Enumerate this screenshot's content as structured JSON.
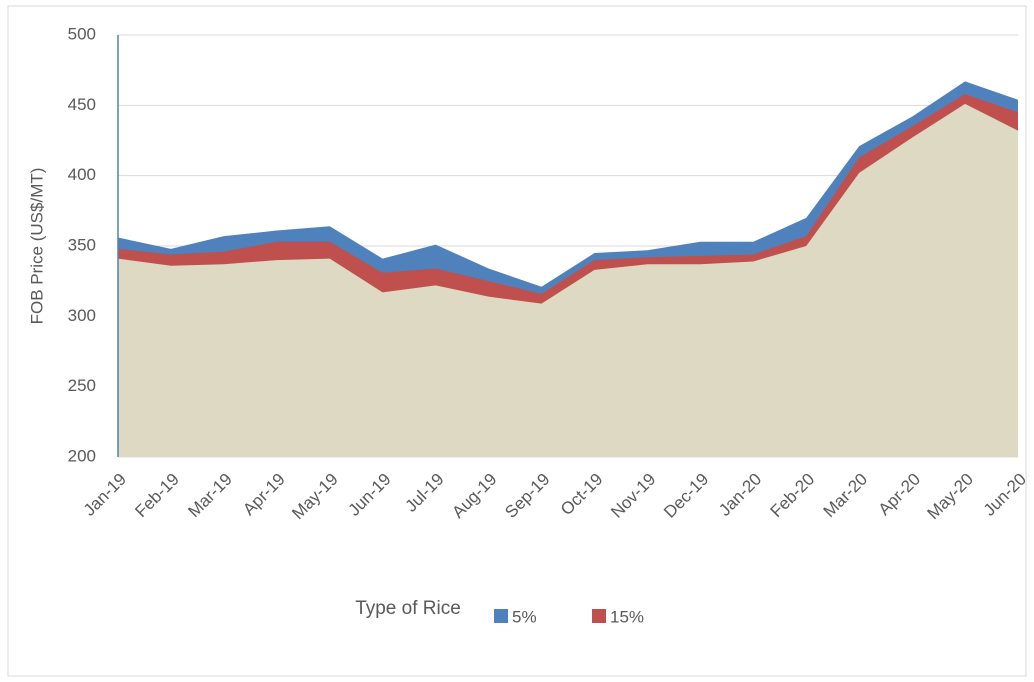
{
  "chart_data": {
    "type": "area",
    "y_label": "FOB Price (US$/MT)",
    "legend_title": "Type of Rice",
    "categories": [
      "Jan-19",
      "Feb-19",
      "Mar-19",
      "Apr-19",
      "May-19",
      "Jun-19",
      "Jul-19",
      "Aug-19",
      "Sep-19",
      "Oct-19",
      "Nov-19",
      "Dec-19",
      "Jan-20",
      "Feb-20",
      "Mar-20",
      "Apr-20",
      "May-20",
      "Jun-20"
    ],
    "series": [
      {
        "name": "5%",
        "color": "#4f81bd",
        "values": [
          356,
          348,
          357,
          361,
          364,
          341,
          351,
          334,
          321,
          345,
          347,
          353,
          353,
          370,
          421,
          442,
          467,
          454
        ]
      },
      {
        "name": "15%",
        "color": "#c0504d",
        "values": [
          348,
          344,
          346,
          353,
          353,
          331,
          334,
          325,
          316,
          340,
          342,
          343,
          344,
          357,
          413,
          435,
          458,
          445
        ]
      },
      {
        "color": "#ddd9c3",
        "values": [
          341,
          336,
          337,
          340,
          341,
          317,
          322,
          314,
          309,
          333,
          337,
          337,
          339,
          350,
          402,
          427,
          451,
          432
        ]
      }
    ],
    "ylim": [
      200,
      500
    ],
    "yticks": [
      200,
      250,
      300,
      350,
      400,
      450,
      500
    ],
    "grid": true,
    "legend": "bottom"
  }
}
